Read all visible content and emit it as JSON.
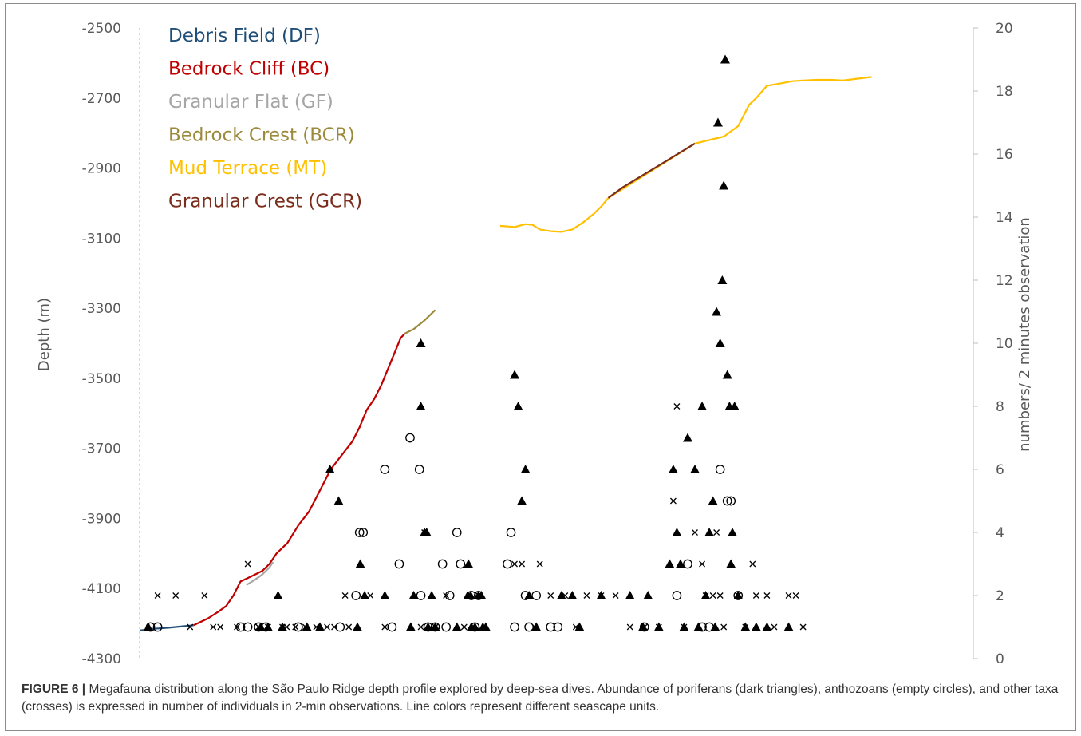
{
  "caption": {
    "label": "FIGURE 6 |",
    "text": "Megafauna distribution along the São Paulo Ridge depth profile explored by deep-sea dives. Abundance of poriferans (dark triangles), anthozoans (empty circles), and other taxa (crosses) is expressed in number of individuals in 2-min observations. Line colors represent different seascape units."
  },
  "chart_data": {
    "type": "scatter",
    "title": "",
    "y_left": {
      "label": "Depth (m)",
      "range": [
        -4300,
        -2500
      ],
      "ticks": [
        "-2500",
        "-2700",
        "-2900",
        "-3100",
        "-3300",
        "-3500",
        "-3700",
        "-3900",
        "-4100",
        "-4300"
      ]
    },
    "y_right": {
      "label": "numbers/ 2 minutes observation",
      "range": [
        0,
        20
      ],
      "ticks": [
        "20",
        "18",
        "16",
        "14",
        "12",
        "10",
        "8",
        "6",
        "4",
        "2",
        "0"
      ]
    },
    "legend": {
      "placement": "top-left",
      "items": [
        {
          "name": "Debris Field (DF)",
          "color": "#1f4e79"
        },
        {
          "name": "Bedrock Cliff (BC)",
          "color": "#c00000"
        },
        {
          "name": "Granular Flat (GF)",
          "color": "#a6a6a6"
        },
        {
          "name": "Bedrock Crest (BCR)",
          "color": "#9c8a3c"
        },
        {
          "name": "Mud Terrace (MT)",
          "color": "#ffc000"
        },
        {
          "name": "Granular Crest (GCR)",
          "color": "#7b2d1c"
        }
      ]
    },
    "profile_segments": [
      {
        "unit": "Debris Field (DF)",
        "color": "#1f4e79",
        "points": [
          [
            0,
            -4220
          ],
          [
            20,
            -4215
          ],
          [
            40,
            -4212
          ],
          [
            60,
            -4208
          ],
          [
            75,
            -4205
          ]
        ]
      },
      {
        "unit": "Bedrock Cliff (BC)",
        "color": "#c00000",
        "points": [
          [
            75,
            -4205
          ],
          [
            95,
            -4185
          ],
          [
            110,
            -4165
          ],
          [
            120,
            -4150
          ],
          [
            130,
            -4120
          ],
          [
            140,
            -4080
          ],
          [
            150,
            -4070
          ],
          [
            160,
            -4060
          ],
          [
            170,
            -4050
          ],
          [
            180,
            -4030
          ],
          [
            190,
            -4000
          ],
          [
            205,
            -3970
          ],
          [
            220,
            -3920
          ],
          [
            235,
            -3880
          ],
          [
            245,
            -3840
          ],
          [
            255,
            -3800
          ],
          [
            265,
            -3760
          ],
          [
            280,
            -3720
          ],
          [
            295,
            -3680
          ],
          [
            305,
            -3640
          ],
          [
            315,
            -3590
          ],
          [
            325,
            -3560
          ],
          [
            335,
            -3520
          ],
          [
            345,
            -3470
          ],
          [
            355,
            -3420
          ],
          [
            362,
            -3385
          ],
          [
            368,
            -3372
          ]
        ]
      },
      {
        "unit": "Granular Flat (GF)",
        "color": "#a6a6a6",
        "points": [
          [
            148,
            -4090
          ],
          [
            160,
            -4075
          ],
          [
            170,
            -4060
          ],
          [
            180,
            -4040
          ],
          [
            185,
            -4025
          ]
        ]
      },
      {
        "unit": "Bedrock Crest (BCR)",
        "color": "#9c8a3c",
        "points": [
          [
            368,
            -3372
          ],
          [
            380,
            -3360
          ],
          [
            395,
            -3335
          ],
          [
            410,
            -3305
          ]
        ]
      },
      {
        "unit": "Mud Terrace (MT)",
        "color": "#ffc000",
        "points": [
          [
            500,
            -3065
          ],
          [
            520,
            -3068
          ],
          [
            535,
            -3060
          ],
          [
            545,
            -3062
          ],
          [
            555,
            -3075
          ],
          [
            570,
            -3080
          ],
          [
            585,
            -3082
          ],
          [
            600,
            -3075
          ],
          [
            615,
            -3055
          ],
          [
            630,
            -3030
          ],
          [
            640,
            -3010
          ],
          [
            650,
            -2985
          ],
          [
            770,
            -2830
          ],
          [
            790,
            -2820
          ],
          [
            810,
            -2810
          ],
          [
            830,
            -2780
          ],
          [
            845,
            -2720
          ],
          [
            855,
            -2700
          ],
          [
            870,
            -2665
          ],
          [
            890,
            -2658
          ],
          [
            905,
            -2652
          ],
          [
            920,
            -2650
          ],
          [
            940,
            -2648
          ],
          [
            960,
            -2648
          ],
          [
            975,
            -2650
          ],
          [
            995,
            -2645
          ],
          [
            1015,
            -2640
          ]
        ]
      },
      {
        "unit": "Granular Crest (GCR)",
        "color": "#7b2d1c",
        "points": [
          [
            650,
            -2985
          ],
          [
            670,
            -2955
          ],
          [
            690,
            -2930
          ],
          [
            710,
            -2905
          ],
          [
            730,
            -2880
          ],
          [
            750,
            -2855
          ],
          [
            770,
            -2830
          ]
        ]
      }
    ],
    "series": [
      {
        "marker": "triangle",
        "points": [
          [
            12,
            1
          ],
          [
            168,
            1
          ],
          [
            178,
            1
          ],
          [
            192,
            2
          ],
          [
            198,
            1
          ],
          [
            232,
            1
          ],
          [
            250,
            1
          ],
          [
            264,
            6
          ],
          [
            276,
            5
          ],
          [
            302,
            1
          ],
          [
            306,
            3
          ],
          [
            312,
            2
          ],
          [
            340,
            2
          ],
          [
            376,
            1
          ],
          [
            380,
            2
          ],
          [
            390,
            8
          ],
          [
            390,
            10
          ],
          [
            395,
            4
          ],
          [
            398,
            4
          ],
          [
            400,
            1
          ],
          [
            405,
            2
          ],
          [
            410,
            1
          ],
          [
            440,
            1
          ],
          [
            455,
            2
          ],
          [
            456,
            3
          ],
          [
            459,
            2
          ],
          [
            460,
            1
          ],
          [
            465,
            1
          ],
          [
            470,
            2
          ],
          [
            474,
            2
          ],
          [
            476,
            1
          ],
          [
            480,
            1
          ],
          [
            520,
            9
          ],
          [
            525,
            8
          ],
          [
            530,
            5
          ],
          [
            535,
            6
          ],
          [
            540,
            2
          ],
          [
            550,
            1
          ],
          [
            585,
            2
          ],
          [
            600,
            2
          ],
          [
            610,
            1
          ],
          [
            640,
            2
          ],
          [
            680,
            2
          ],
          [
            698,
            1
          ],
          [
            705,
            2
          ],
          [
            720,
            1
          ],
          [
            735,
            3
          ],
          [
            740,
            6
          ],
          [
            745,
            4
          ],
          [
            750,
            3
          ],
          [
            755,
            1
          ],
          [
            760,
            7
          ],
          [
            770,
            6
          ],
          [
            775,
            1
          ],
          [
            780,
            8
          ],
          [
            785,
            2
          ],
          [
            790,
            4
          ],
          [
            795,
            5
          ],
          [
            798,
            1
          ],
          [
            800,
            11
          ],
          [
            802,
            17
          ],
          [
            805,
            10
          ],
          [
            808,
            12
          ],
          [
            810,
            15
          ],
          [
            812,
            19
          ],
          [
            815,
            9
          ],
          [
            818,
            8
          ],
          [
            820,
            3
          ],
          [
            822,
            4
          ],
          [
            825,
            8
          ],
          [
            830,
            2
          ],
          [
            840,
            1
          ],
          [
            855,
            1
          ],
          [
            870,
            1
          ],
          [
            900,
            1
          ]
        ]
      },
      {
        "marker": "circle",
        "points": [
          [
            15,
            1
          ],
          [
            25,
            1
          ],
          [
            140,
            1
          ],
          [
            150,
            1
          ],
          [
            165,
            1
          ],
          [
            175,
            1
          ],
          [
            220,
            1
          ],
          [
            278,
            1
          ],
          [
            300,
            2
          ],
          [
            305,
            4
          ],
          [
            310,
            4
          ],
          [
            340,
            6
          ],
          [
            350,
            1
          ],
          [
            360,
            3
          ],
          [
            375,
            7
          ],
          [
            388,
            6
          ],
          [
            390,
            2
          ],
          [
            400,
            1
          ],
          [
            410,
            1
          ],
          [
            420,
            3
          ],
          [
            425,
            1
          ],
          [
            430,
            2
          ],
          [
            440,
            4
          ],
          [
            445,
            3
          ],
          [
            460,
            2
          ],
          [
            465,
            1
          ],
          [
            470,
            2
          ],
          [
            510,
            3
          ],
          [
            515,
            4
          ],
          [
            520,
            1
          ],
          [
            535,
            2
          ],
          [
            540,
            1
          ],
          [
            550,
            2
          ],
          [
            570,
            1
          ],
          [
            580,
            1
          ],
          [
            700,
            1
          ],
          [
            745,
            2
          ],
          [
            760,
            3
          ],
          [
            780,
            1
          ],
          [
            790,
            1
          ],
          [
            805,
            6
          ],
          [
            815,
            5
          ],
          [
            820,
            5
          ],
          [
            830,
            2
          ]
        ]
      },
      {
        "marker": "cross",
        "points": [
          [
            25,
            2
          ],
          [
            50,
            2
          ],
          [
            70,
            1
          ],
          [
            90,
            2
          ],
          [
            102,
            1
          ],
          [
            112,
            1
          ],
          [
            135,
            1
          ],
          [
            150,
            3
          ],
          [
            165,
            1
          ],
          [
            178,
            1
          ],
          [
            198,
            1
          ],
          [
            204,
            1
          ],
          [
            216,
            1
          ],
          [
            230,
            1
          ],
          [
            245,
            1
          ],
          [
            260,
            1
          ],
          [
            270,
            1
          ],
          [
            285,
            2
          ],
          [
            290,
            1
          ],
          [
            320,
            2
          ],
          [
            340,
            1
          ],
          [
            390,
            1
          ],
          [
            395,
            4
          ],
          [
            410,
            1
          ],
          [
            425,
            2
          ],
          [
            450,
            1
          ],
          [
            470,
            2
          ],
          [
            520,
            3
          ],
          [
            530,
            3
          ],
          [
            548,
            1
          ],
          [
            555,
            3
          ],
          [
            570,
            2
          ],
          [
            590,
            2
          ],
          [
            605,
            1
          ],
          [
            620,
            2
          ],
          [
            640,
            2
          ],
          [
            660,
            2
          ],
          [
            680,
            1
          ],
          [
            700,
            1
          ],
          [
            720,
            1
          ],
          [
            740,
            5
          ],
          [
            745,
            8
          ],
          [
            755,
            1
          ],
          [
            770,
            4
          ],
          [
            780,
            3
          ],
          [
            785,
            2
          ],
          [
            795,
            2
          ],
          [
            800,
            4
          ],
          [
            805,
            2
          ],
          [
            810,
            1
          ],
          [
            830,
            2
          ],
          [
            840,
            1
          ],
          [
            850,
            3
          ],
          [
            855,
            2
          ],
          [
            870,
            2
          ],
          [
            880,
            1
          ],
          [
            900,
            2
          ],
          [
            910,
            2
          ],
          [
            920,
            1
          ]
        ]
      }
    ],
    "grid": false
  }
}
